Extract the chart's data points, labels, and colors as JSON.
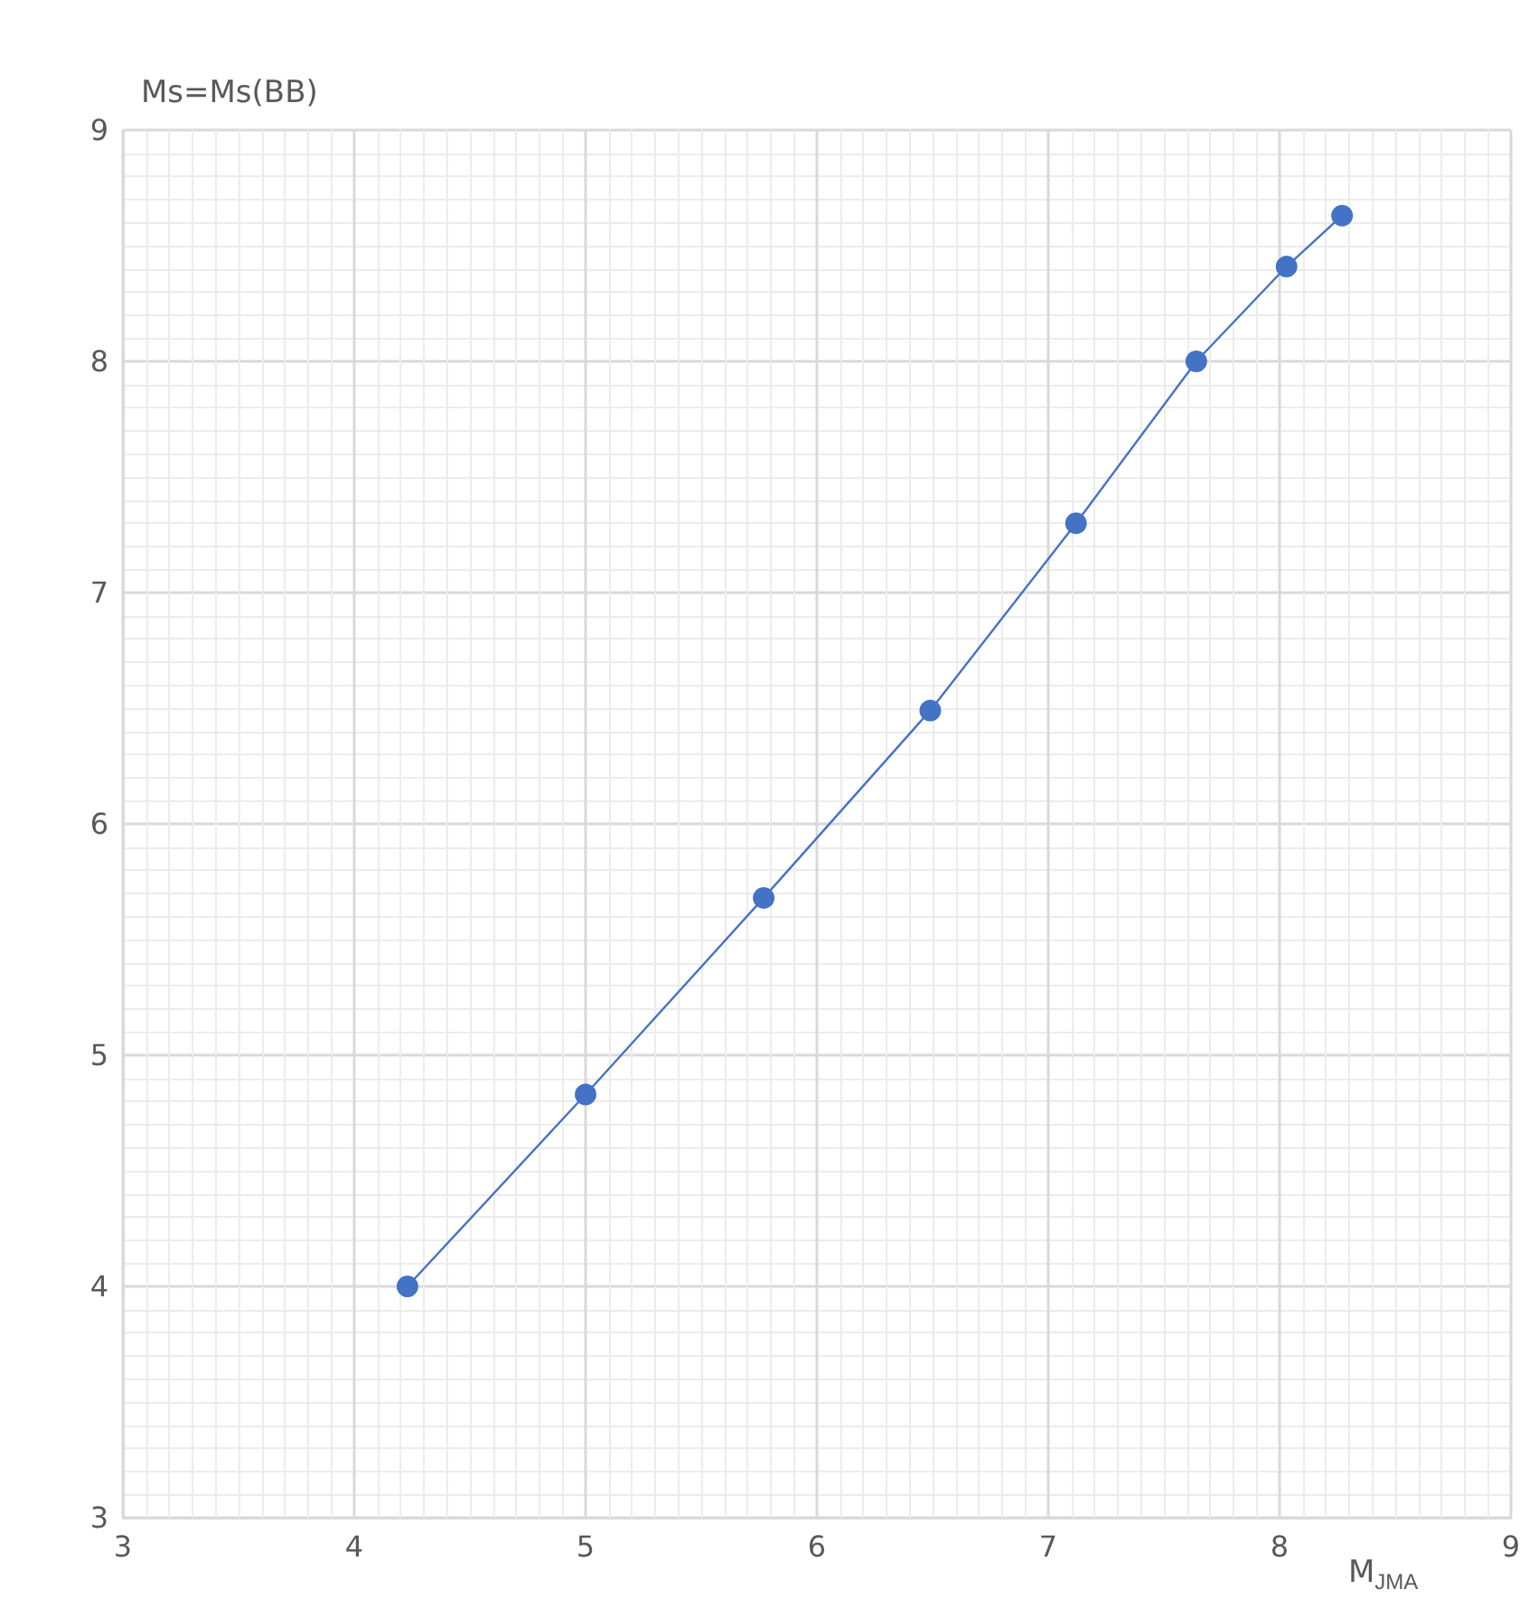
{
  "chart_data": {
    "type": "line",
    "xlabel": "M$_{JMA}$",
    "ylabel": "Ms=Ms(BB)",
    "x": [
      4.23,
      5.0,
      5.77,
      6.49,
      7.12,
      7.64,
      8.03,
      8.27
    ],
    "series": [
      {
        "color": "#4472c4",
        "values": [
          4.0,
          4.83,
          5.68,
          6.49,
          7.3,
          8.0,
          8.41,
          8.63
        ]
      }
    ],
    "xlim": [
      3,
      9
    ],
    "xticks": [
      3,
      4,
      5,
      6,
      7,
      8,
      9
    ],
    "ylim": [
      3,
      9
    ],
    "yticks": [
      3,
      4,
      5,
      6,
      7,
      8,
      9
    ],
    "grid": true,
    "marker": "circle",
    "line_style": "solid"
  }
}
